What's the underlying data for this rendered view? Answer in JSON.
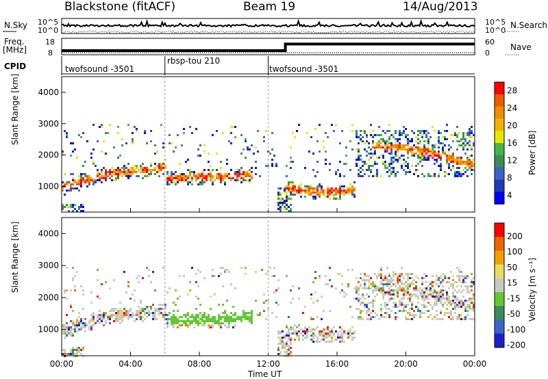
{
  "header": {
    "station": "Blackstone (fitACF)",
    "beam": "Beam 19",
    "date": "14/Aug/2013"
  },
  "strip": {
    "nsky_label": "N.Sky",
    "nsearch_label": "N.Search",
    "freq_label": "Freq.",
    "freq_unit": "[MHz]",
    "nave_label": "Nave",
    "cpid_label": "CPID",
    "noise_ticks": [
      "10^5",
      "10^0"
    ],
    "freq_ticks": [
      "18",
      "8"
    ],
    "nave_ticks": [
      "60",
      "0"
    ]
  },
  "chart_data": [
    {
      "type": "line",
      "name": "noise",
      "series": [
        {
          "name": "N.Sky"
        },
        {
          "name": "N.Search"
        }
      ],
      "ylabel_left": "N.Sky",
      "ylabel_right": "N.Search",
      "yticks": [
        "10^5",
        "10^0"
      ]
    },
    {
      "type": "line",
      "name": "frequency-nave",
      "x": [
        0,
        13,
        13,
        24
      ],
      "freq_mhz": [
        10.5,
        10.5,
        14.5,
        14.5
      ],
      "ylabel_left": "Freq. [MHz]",
      "ylabel_right": "Nave",
      "yticks_left": [
        "18",
        "8"
      ],
      "yticks_right": [
        "60",
        "0"
      ]
    },
    {
      "type": "table",
      "name": "cpid",
      "segments": [
        {
          "start_h": 0,
          "end_h": 6,
          "label": "twofsound -3501"
        },
        {
          "start_h": 6,
          "end_h": 12,
          "label": "rbsp-tou 210"
        },
        {
          "start_h": 12,
          "end_h": 24,
          "label": "twofsound -3501"
        }
      ]
    },
    {
      "type": "heatmap",
      "name": "power",
      "xlabel": "",
      "ylabel": "Slant Range [km]",
      "xlim": [
        0,
        24
      ],
      "ylim": [
        180,
        4500
      ],
      "yticks": [
        1000,
        2000,
        3000,
        4000
      ],
      "colorbar": {
        "label": "Power [dB]",
        "ticks": [
          4,
          8,
          12,
          16,
          20,
          24,
          28
        ],
        "colors": [
          "#0000ff",
          "#1e3cb4",
          "#3c64c8",
          "#3c8c5a",
          "#46b446",
          "#e6e600",
          "#f0b400",
          "#f08c00",
          "#f05a00",
          "#ff0000"
        ]
      },
      "echo_bands": [
        {
          "x": [
            0,
            1,
            2,
            3,
            4,
            5,
            6
          ],
          "range": [
            1000,
            1150,
            1350,
            1450,
            1500,
            1550,
            1650
          ]
        },
        {
          "x": [
            6,
            7,
            8,
            9,
            10,
            11
          ],
          "range": [
            1300,
            1300,
            1320,
            1320,
            1350,
            1400
          ]
        },
        {
          "x": [
            13,
            14,
            15,
            16,
            17
          ],
          "range": [
            1000,
            900,
            850,
            850,
            950
          ]
        },
        {
          "x": [
            18,
            20,
            22,
            24
          ],
          "range": [
            2300,
            2250,
            2000,
            1700
          ]
        }
      ]
    },
    {
      "type": "heatmap",
      "name": "velocity",
      "xlabel": "Time UT",
      "ylabel": "Slant Range [km]",
      "xlim": [
        0,
        24
      ],
      "ylim": [
        180,
        4500
      ],
      "xticks": [
        "00:00",
        "04:00",
        "08:00",
        "12:00",
        "16:00",
        "20:00",
        "00:00"
      ],
      "yticks": [
        1000,
        2000,
        3000,
        4000
      ],
      "colorbar": {
        "label": "Velocity [m s⁻¹]",
        "ticks": [
          "200",
          "100",
          "50",
          "15",
          "-15",
          "-50",
          "-100",
          "-200"
        ],
        "colors": [
          "#1e1ec8",
          "#3c64c8",
          "#3c8c5a",
          "#64c832",
          "#c8c8c8",
          "#e6dc64",
          "#f0a000",
          "#f06400",
          "#ff0000"
        ]
      }
    }
  ]
}
